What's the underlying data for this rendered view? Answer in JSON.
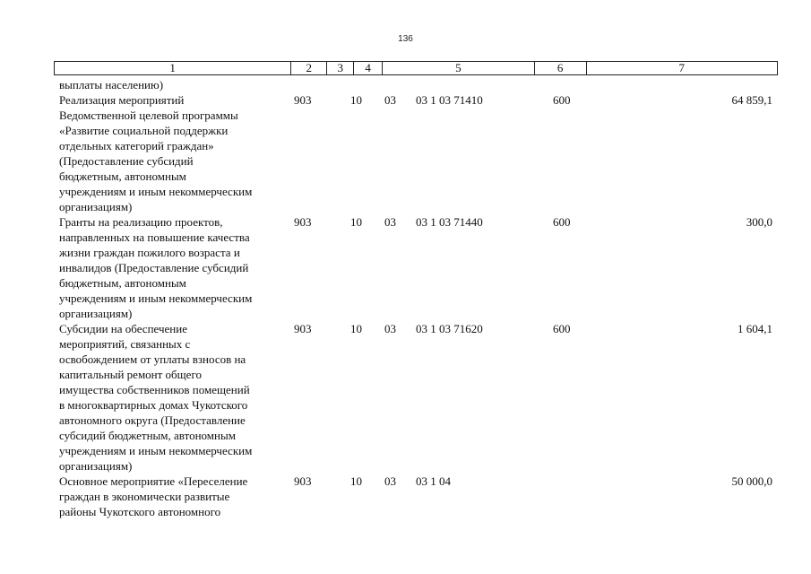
{
  "page_number": "136",
  "header": {
    "columns": [
      "1",
      "2",
      "3",
      "4",
      "5",
      "6",
      "7"
    ]
  },
  "rows": [
    {
      "name": "выплаты населению)",
      "gr": "",
      "rz": "",
      "prz": "",
      "csr": "",
      "vr": "",
      "sum": ""
    },
    {
      "name": "Реализация мероприятий\nВедомственной целевой программы\n«Развитие социальной поддержки\nотдельных категорий граждан»\n(Предоставление субсидий\nбюджетным, автономным\nучреждениям и иным некоммерческим\nорганизациям)",
      "gr": "903",
      "rz": "10",
      "prz": "03",
      "csr": "03 1 03 71410",
      "vr": "600",
      "sum": "64 859,1"
    },
    {
      "name": "Гранты на реализацию проектов,\nнаправленных на повышение качества\nжизни граждан пожилого возраста и\nинвалидов (Предоставление субсидий\nбюджетным, автономным\nучреждениям и иным некоммерческим\nорганизациям)",
      "gr": "903",
      "rz": "10",
      "prz": "03",
      "csr": "03 1 03 71440",
      "vr": "600",
      "sum": "300,0"
    },
    {
      "name": "Субсидии на обеспечение\nмероприятий, связанных с\nосвобождением от уплаты взносов на\nкапитальный ремонт общего\nимущества собственников помещений\nв многоквартирных домах Чукотского\nавтономного округа (Предоставление\nсубсидий бюджетным, автономным\nучреждениям и иным некоммерческим\nорганизациям)",
      "gr": "903",
      "rz": "10",
      "prz": "03",
      "csr": "03 1 03 71620",
      "vr": "600",
      "sum": "1 604,1"
    },
    {
      "name": "Основное мероприятие «Переселение\nграждан в экономически развитые\nрайоны Чукотского автономного",
      "gr": "903",
      "rz": "10",
      "prz": "03",
      "csr": "03 1 04",
      "vr": "",
      "sum": "50 000,0"
    }
  ]
}
